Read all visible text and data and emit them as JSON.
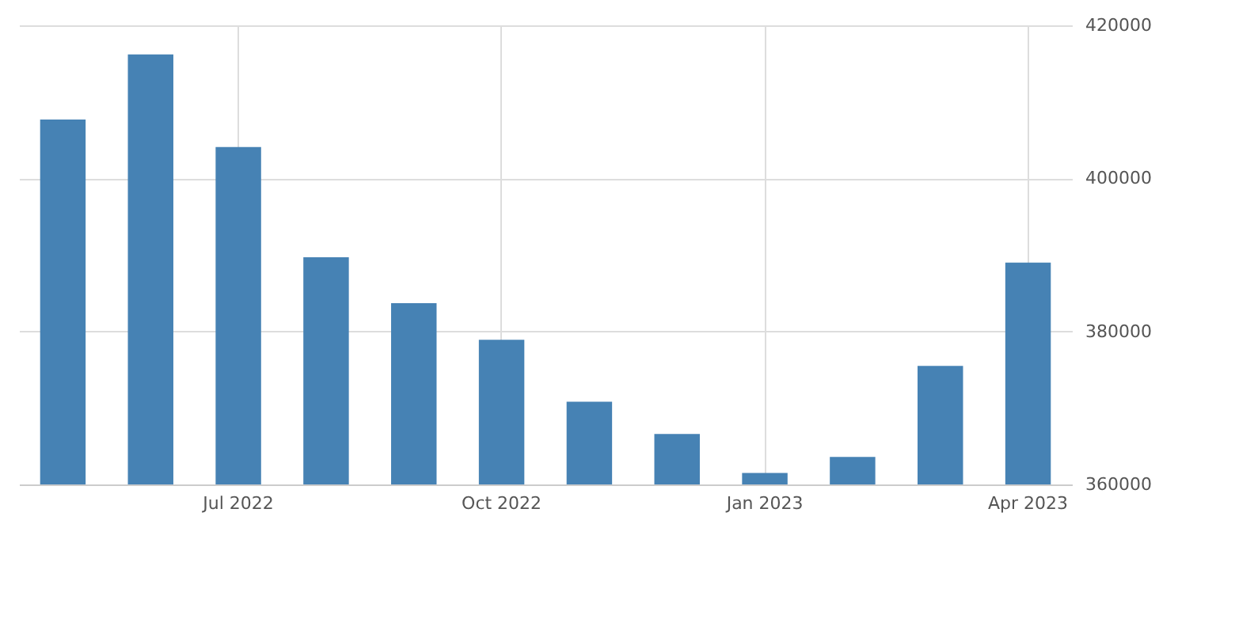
{
  "chart_data": {
    "type": "bar",
    "categories": [
      null,
      null,
      "Jul 2022",
      null,
      null,
      "Oct 2022",
      null,
      null,
      "Jan 2023",
      null,
      null,
      "Apr 2023"
    ],
    "values": [
      407700,
      416200,
      404100,
      389700,
      383700,
      378900,
      370800,
      366600,
      361500,
      363600,
      375500,
      389000
    ],
    "color": "#4682b4",
    "ylim": [
      360000,
      420000
    ],
    "yticks": [
      360000,
      380000,
      400000,
      420000
    ],
    "grid": true
  }
}
